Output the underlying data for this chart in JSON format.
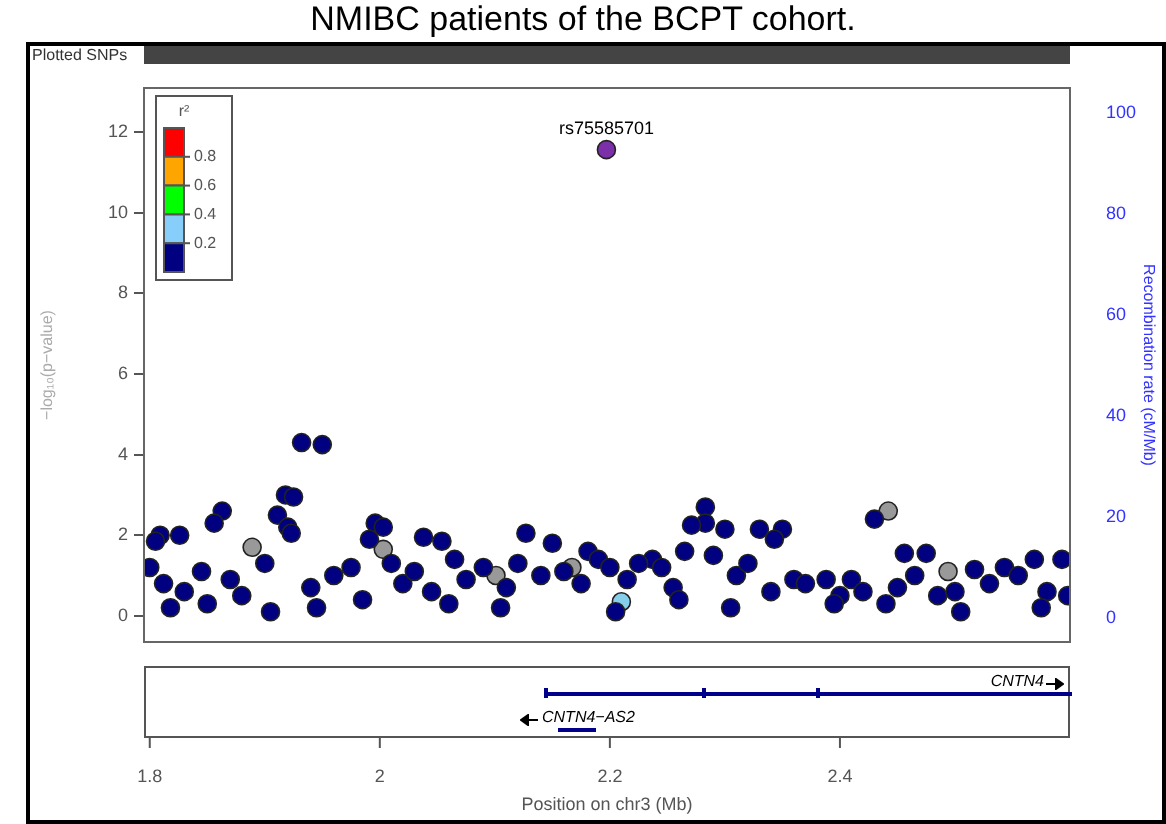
{
  "chart_data": {
    "type": "scatter",
    "title": "NMIBC patients of the BCPT cohort.",
    "xlabel": "Position on chr3 (Mb)",
    "ylabel": "−log₁₀(p−value)",
    "y2label": "Recombination rate (cM/Mb)",
    "xlim": [
      1.795,
      2.6
    ],
    "xticks": [
      1.8,
      2,
      2.2,
      2.4
    ],
    "ylim": [
      -0.65,
      13.1
    ],
    "yticks": [
      0,
      2,
      4,
      6,
      8,
      10,
      12
    ],
    "y2lim": [
      -4.8,
      105
    ],
    "y2ticks": [
      0,
      20,
      40,
      60,
      80,
      100
    ],
    "marker": "circle",
    "annotations": [
      "Plotted SNPs",
      "CNTN4",
      "CNTN4−AS2",
      {
        "text": "rs75585701",
        "x": 2.197,
        "y": 11.57
      },
      "r²",
      "0.8",
      "0.6",
      "0.4",
      "0.2"
    ],
    "series": [
      {
        "color": "#000080",
        "x": [
          1.932,
          1.95,
          1.918,
          1.925,
          1.863,
          1.856,
          1.826,
          1.809,
          1.805,
          1.911,
          1.92,
          1.923,
          1.996,
          2.003,
          1.991,
          2.038,
          2.054,
          2.127,
          2.15,
          2.181,
          2.283,
          2.283,
          2.271,
          2.3,
          2.33,
          2.35,
          2.343,
          2.43,
          2.456,
          2.475,
          2.593,
          2.569,
          2.543,
          2.517,
          2.237,
          2.36,
          2.388,
          1.8,
          1.812,
          1.83,
          1.845,
          1.87,
          1.88,
          1.9,
          1.94,
          1.96,
          1.975,
          1.985,
          2.01,
          2.02,
          2.03,
          2.045,
          2.065,
          2.075,
          2.09,
          2.11,
          2.12,
          2.14,
          2.16,
          2.175,
          2.19,
          2.2,
          2.215,
          2.225,
          2.245,
          2.255,
          2.265,
          2.29,
          2.31,
          2.32,
          2.34,
          2.37,
          2.4,
          2.41,
          2.42,
          2.44,
          2.45,
          2.465,
          2.485,
          2.5,
          2.53,
          2.555,
          2.58,
          2.598,
          1.818,
          1.85,
          1.905,
          1.945,
          2.06,
          2.105,
          2.205,
          2.26,
          2.305,
          2.395,
          2.505,
          2.575
        ],
        "values": [
          4.3,
          4.25,
          3.0,
          2.95,
          2.6,
          2.3,
          2.0,
          2.0,
          1.85,
          2.5,
          2.2,
          2.05,
          2.3,
          2.2,
          1.9,
          1.95,
          1.85,
          2.05,
          1.8,
          1.6,
          2.7,
          2.3,
          2.25,
          2.15,
          2.15,
          2.15,
          1.9,
          2.4,
          1.55,
          1.55,
          1.4,
          1.4,
          1.2,
          1.15,
          1.4,
          0.9,
          0.9,
          1.2,
          0.8,
          0.6,
          1.1,
          0.9,
          0.5,
          1.3,
          0.7,
          1.0,
          1.2,
          0.4,
          1.3,
          0.8,
          1.1,
          0.6,
          1.4,
          0.9,
          1.2,
          0.7,
          1.3,
          1.0,
          1.1,
          0.8,
          1.4,
          1.2,
          0.9,
          1.3,
          1.2,
          0.7,
          1.6,
          1.5,
          1.0,
          1.3,
          0.6,
          0.8,
          0.5,
          0.9,
          0.6,
          0.3,
          0.7,
          1.0,
          0.5,
          0.6,
          0.8,
          1.0,
          0.6,
          0.5,
          0.2,
          0.3,
          0.1,
          0.2,
          0.3,
          0.2,
          0.1,
          0.4,
          0.2,
          0.3,
          0.1,
          0.2
        ]
      },
      {
        "color": "#999999",
        "x": [
          1.889,
          2.003,
          2.101,
          2.167,
          2.442,
          2.494
        ],
        "values": [
          1.7,
          1.65,
          1.0,
          1.2,
          2.6,
          1.1
        ]
      },
      {
        "color": "#87ceeb",
        "x": [
          2.21
        ],
        "values": [
          0.35
        ]
      },
      {
        "color": "#7b2fa8",
        "x": [
          2.197
        ],
        "values": [
          11.57
        ]
      }
    ]
  }
}
